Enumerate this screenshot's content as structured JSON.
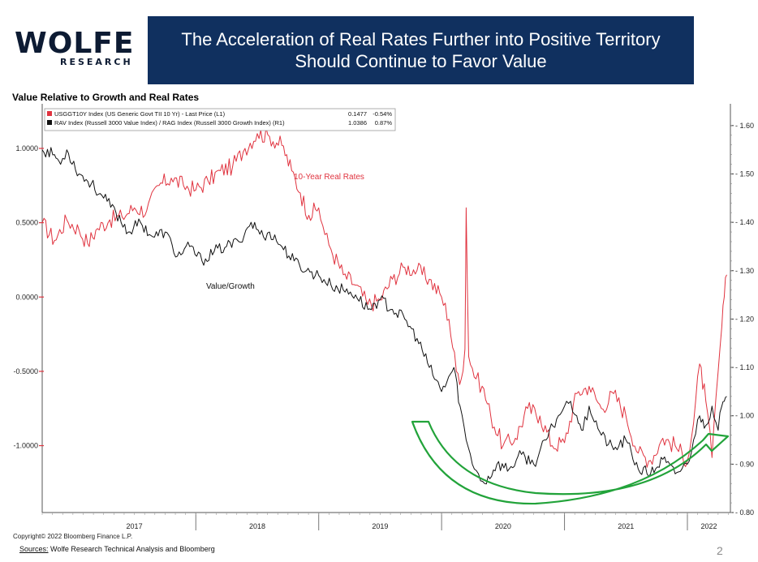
{
  "logo": {
    "name": "WOLFE",
    "sub": "RESEARCH"
  },
  "header": {
    "title_line1": "The Acceleration of Real Rates Further into Positive Territory",
    "title_line2": "Should Continue to Favor Value"
  },
  "colors": {
    "real_rate": "#e0333f",
    "value_growth": "#111111",
    "arrow": "#22a33a",
    "banner": "#10305f"
  },
  "chart_data": {
    "type": "line",
    "title": "Value Relative to Growth and Real Rates",
    "x_labels": [
      "2017",
      "2018",
      "2019",
      "2020",
      "2021",
      "2022"
    ],
    "x_range": [
      2016.75,
      2022.35
    ],
    "left_axis": {
      "ticks": [
        "1.0000",
        "0.5000",
        "0.0000",
        "-0.5000",
        "-1.0000"
      ],
      "tick_values": [
        1.0,
        0.5,
        0.0,
        -0.5,
        -1.0
      ],
      "range": [
        -1.45,
        1.3
      ]
    },
    "right_axis": {
      "ticks": [
        "1.60",
        "1.50",
        "1.40",
        "1.30",
        "1.20",
        "1.10",
        "1.00",
        "0.90",
        "0.80"
      ],
      "tick_values": [
        1.6,
        1.5,
        1.4,
        1.3,
        1.2,
        1.1,
        1.0,
        0.9,
        0.8
      ],
      "range": [
        0.8,
        1.645
      ]
    },
    "legend": [
      {
        "series": "USGGT10Y Index (US Generic Govt TII 10 Yr) - Last Price (L1)",
        "last": "0.1477",
        "change": "-0.54%"
      },
      {
        "series": "RAV Index (Russell 3000 Value Index) / RAG Index (Russell 3000 Growth Index) (R1)",
        "last": "1.0386",
        "change": "0.87%"
      }
    ],
    "annotations": {
      "real_rate": "10-Year Real Rates",
      "value_growth": "Value/Growth"
    },
    "series": [
      {
        "name": "10-Year Real Rates",
        "axis": "left",
        "x": [
          2016.75,
          2016.85,
          2016.95,
          2017.05,
          2017.12,
          2017.2,
          2017.3,
          2017.4,
          2017.5,
          2017.6,
          2017.7,
          2017.8,
          2017.9,
          2018.0,
          2018.1,
          2018.2,
          2018.3,
          2018.4,
          2018.5,
          2018.6,
          2018.7,
          2018.78,
          2018.85,
          2018.92,
          2019.0,
          2019.05,
          2019.1,
          2019.2,
          2019.3,
          2019.4,
          2019.5,
          2019.6,
          2019.7,
          2019.8,
          2019.9,
          2020.0,
          2020.06,
          2020.12,
          2020.16,
          2020.19,
          2020.2,
          2020.22,
          2020.28,
          2020.33,
          2020.4,
          2020.5,
          2020.6,
          2020.7,
          2020.8,
          2020.9,
          2021.0,
          2021.1,
          2021.2,
          2021.3,
          2021.4,
          2021.5,
          2021.6,
          2021.7,
          2021.8,
          2021.9,
          2022.0,
          2022.05,
          2022.1,
          2022.15,
          2022.2,
          2022.25,
          2022.28,
          2022.3,
          2022.32
        ],
        "values": [
          0.5,
          0.38,
          0.52,
          0.45,
          0.36,
          0.46,
          0.52,
          0.54,
          0.6,
          0.58,
          0.75,
          0.8,
          0.75,
          0.72,
          0.78,
          0.85,
          0.88,
          1.0,
          1.1,
          1.08,
          1.02,
          0.85,
          0.7,
          0.55,
          0.6,
          0.42,
          0.32,
          0.15,
          0.08,
          -0.05,
          -0.02,
          0.12,
          0.2,
          0.18,
          0.12,
          0.0,
          -0.15,
          -0.5,
          -0.55,
          -0.35,
          0.6,
          -0.4,
          -0.55,
          -0.6,
          -0.8,
          -1.0,
          -0.95,
          -0.75,
          -0.8,
          -1.0,
          -0.98,
          -0.65,
          -0.6,
          -0.75,
          -0.65,
          -0.8,
          -1.05,
          -1.1,
          -0.95,
          -1.0,
          -1.1,
          -0.85,
          -0.45,
          -0.7,
          -1.08,
          -0.5,
          -0.2,
          0.0,
          0.15
        ]
      },
      {
        "name": "Value/Growth",
        "axis": "right",
        "x": [
          2016.75,
          2016.85,
          2016.9,
          2016.95,
          2017.05,
          2017.15,
          2017.25,
          2017.35,
          2017.45,
          2017.55,
          2017.65,
          2017.75,
          2017.85,
          2017.95,
          2018.05,
          2018.15,
          2018.25,
          2018.35,
          2018.45,
          2018.55,
          2018.6,
          2018.7,
          2018.8,
          2018.9,
          2019.0,
          2019.1,
          2019.2,
          2019.3,
          2019.4,
          2019.5,
          2019.6,
          2019.7,
          2019.8,
          2019.9,
          2020.0,
          2020.1,
          2020.15,
          2020.2,
          2020.25,
          2020.3,
          2020.35,
          2020.45,
          2020.55,
          2020.65,
          2020.75,
          2020.85,
          2020.95,
          2021.0,
          2021.05,
          2021.1,
          2021.15,
          2021.2,
          2021.3,
          2021.4,
          2021.5,
          2021.6,
          2021.7,
          2021.8,
          2021.9,
          2022.0,
          2022.05,
          2022.1,
          2022.15,
          2022.2,
          2022.25,
          2022.28,
          2022.3,
          2022.32
        ],
        "values": [
          1.55,
          1.54,
          1.52,
          1.55,
          1.5,
          1.48,
          1.45,
          1.42,
          1.38,
          1.4,
          1.37,
          1.38,
          1.33,
          1.35,
          1.32,
          1.34,
          1.35,
          1.36,
          1.4,
          1.37,
          1.38,
          1.35,
          1.32,
          1.3,
          1.29,
          1.27,
          1.26,
          1.25,
          1.22,
          1.24,
          1.22,
          1.2,
          1.16,
          1.1,
          1.05,
          1.1,
          1.02,
          0.95,
          0.9,
          0.88,
          0.86,
          0.9,
          0.89,
          0.92,
          0.9,
          0.95,
          1.0,
          1.02,
          1.03,
          1.0,
          0.97,
          1.02,
          0.96,
          0.93,
          0.95,
          0.89,
          0.88,
          0.91,
          0.88,
          0.9,
          0.95,
          1.0,
          0.98,
          1.02,
          0.97,
          1.02,
          1.03,
          1.04
        ]
      }
    ]
  },
  "footer": {
    "copyright": "Copyright© 2022 Bloomberg Finance L.P.",
    "sources_label": "Sources:",
    "sources_text": " Wolfe Research Technical Analysis and Bloomberg",
    "page_number": "2"
  }
}
